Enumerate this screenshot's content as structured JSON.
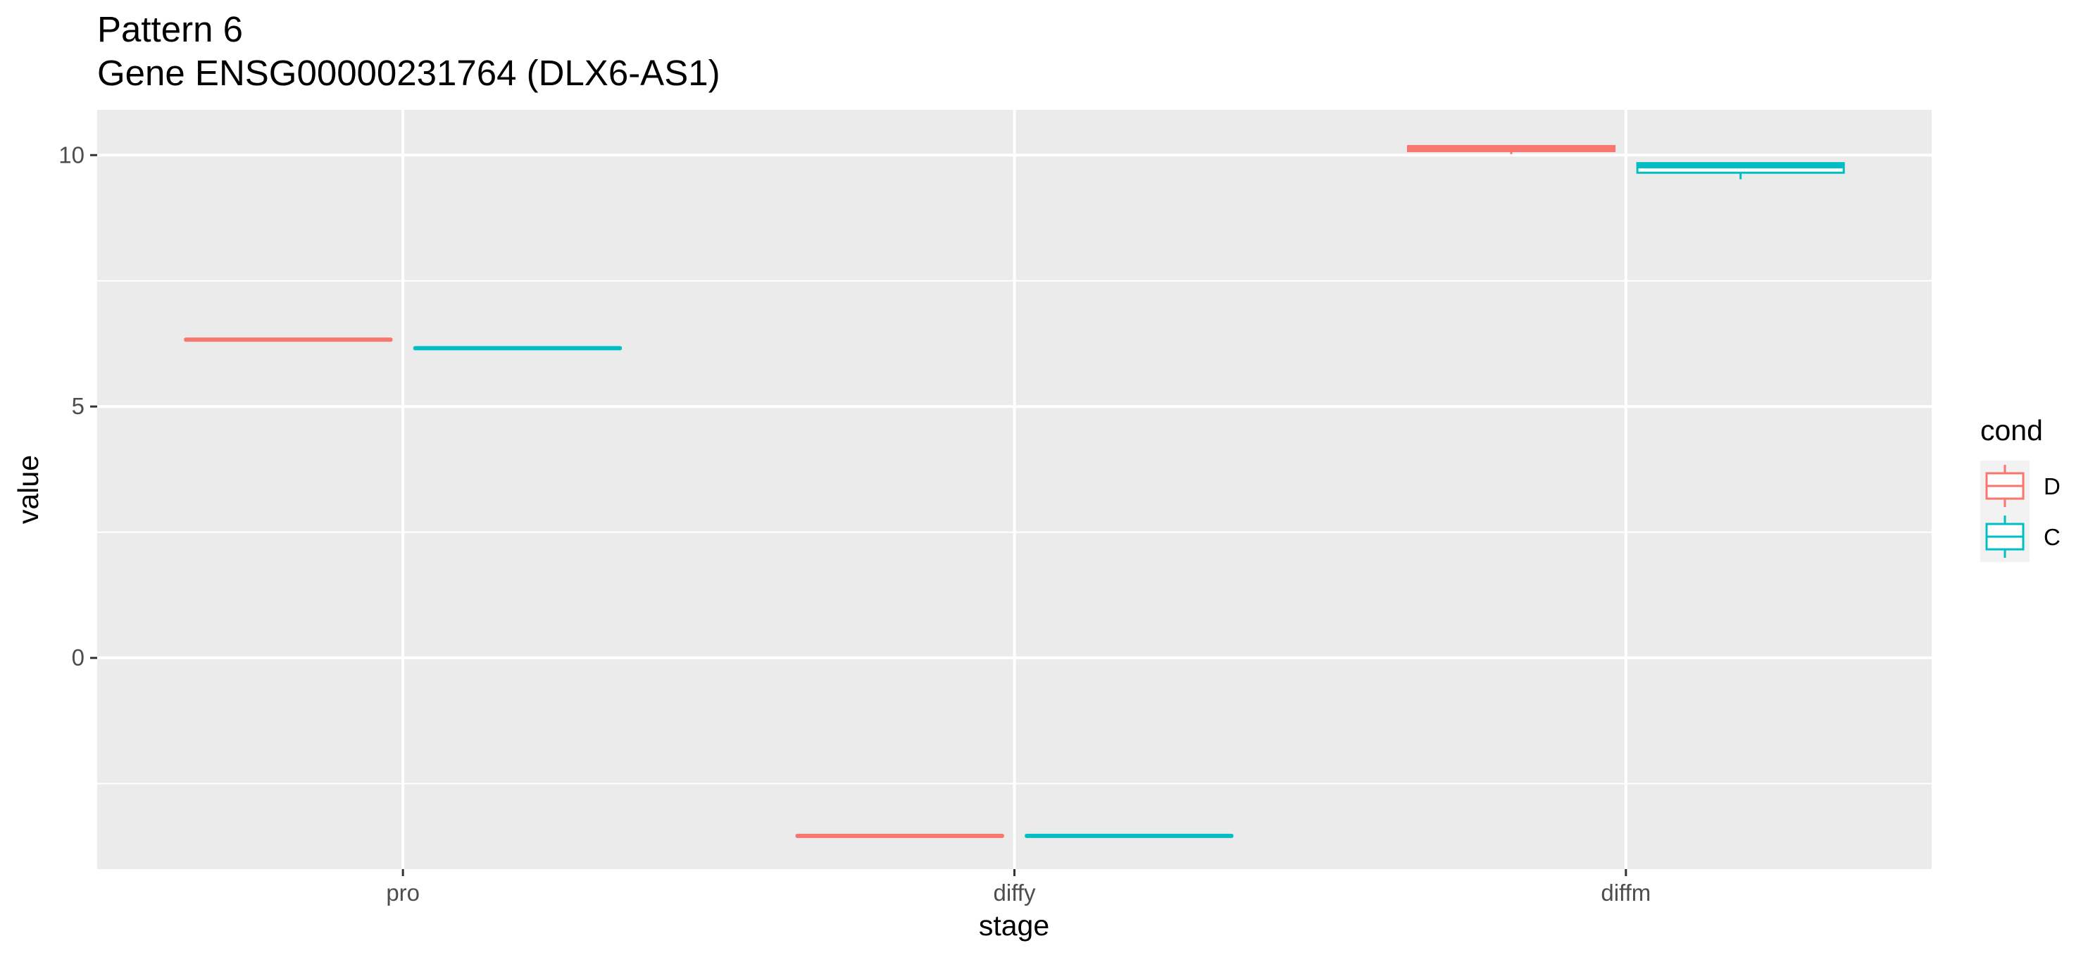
{
  "chart_data": {
    "type": "boxplot",
    "title": "Pattern 6",
    "subtitle": "Gene ENSG00000231764 (DLX6-AS1)",
    "xlabel": "stage",
    "ylabel": "value",
    "categories": [
      "pro",
      "diffy",
      "diffm"
    ],
    "ylim": [
      -4.2,
      10.9
    ],
    "yticks": [
      0,
      5,
      10
    ],
    "grid": true,
    "legend": {
      "title": "cond",
      "position": "right"
    },
    "series": [
      {
        "name": "D",
        "color": "#F8766D",
        "boxes": [
          {
            "category": "pro",
            "min": 6.32,
            "q1": 6.32,
            "median": 6.33,
            "q3": 6.34,
            "max": 6.34
          },
          {
            "category": "diffy",
            "min": -3.55,
            "q1": -3.55,
            "median": -3.54,
            "q3": -3.53,
            "max": -3.53
          },
          {
            "category": "diffm",
            "min": 10.02,
            "q1": 10.08,
            "median": 10.14,
            "q3": 10.18,
            "max": 10.2
          }
        ]
      },
      {
        "name": "C",
        "color": "#00BFC4",
        "boxes": [
          {
            "category": "pro",
            "min": 6.14,
            "q1": 6.15,
            "median": 6.16,
            "q3": 6.17,
            "max": 6.17
          },
          {
            "category": "diffy",
            "min": -3.55,
            "q1": -3.55,
            "median": -3.54,
            "q3": -3.53,
            "max": -3.53
          },
          {
            "category": "diffm",
            "min": 9.52,
            "q1": 9.65,
            "median": 9.78,
            "q3": 9.84,
            "max": 9.85
          }
        ]
      }
    ]
  }
}
